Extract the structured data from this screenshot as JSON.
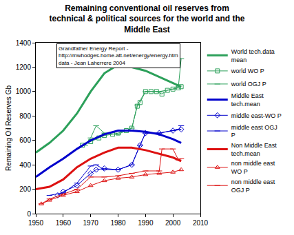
{
  "chart_data": {
    "type": "line",
    "title": [
      "Remaining conventional oil reserves from",
      "technical & political sources for the world and the",
      "Middle East"
    ],
    "annotation": [
      "Grandfather Energy Report -",
      "http://mwhodges.home.att.net/energy/energy.htm",
      "data - Jean Laherrere 2004"
    ],
    "y_label": "Remaining Oil Reserves Gb",
    "xlim": [
      1950,
      2010
    ],
    "xticks": [
      1950,
      1960,
      1970,
      1980,
      1990,
      2000,
      2010
    ],
    "ylim": [
      0,
      1400
    ],
    "yticks": [
      0,
      200,
      400,
      600,
      800,
      1000,
      1200,
      1400
    ],
    "grid": false,
    "legend": "right",
    "series": [
      {
        "name": "World tech.data mean",
        "color": "#2ca05a",
        "marker": "none",
        "line_style": "thick",
        "x": [
          1950,
          1955,
          1960,
          1965,
          1970,
          1975,
          1980,
          1985,
          1990,
          1995,
          2000,
          2003
        ],
        "values": [
          500,
          580,
          680,
          820,
          1000,
          1150,
          1220,
          1200,
          1170,
          1120,
          1070,
          1040
        ]
      },
      {
        "name": "world WO P",
        "color": "#2ca05a",
        "marker": "square",
        "line_style": "solid",
        "x": [
          1967,
          1970,
          1973,
          1975,
          1978,
          1980,
          1983,
          1985,
          1987,
          1988,
          1990,
          1992,
          1994,
          1996,
          1998,
          2000,
          2002,
          2003
        ],
        "values": [
          560,
          590,
          620,
          640,
          650,
          660,
          680,
          700,
          880,
          910,
          1000,
          1000,
          1000,
          980,
          1010,
          1020,
          1030,
          1040
        ]
      },
      {
        "name": "world OGJ P",
        "color": "#2ca05a",
        "marker": "dash",
        "line_style": "solid",
        "x": [
          1968,
          1970,
          1972,
          1975,
          1980,
          1985,
          1987,
          1990,
          1995,
          2000,
          2002,
          2003
        ],
        "values": [
          560,
          620,
          720,
          660,
          650,
          700,
          890,
          1000,
          1000,
          1020,
          1040,
          1270
        ]
      },
      {
        "name": "Middle East tech.mean",
        "color": "#0000cc",
        "marker": "none",
        "line_style": "thick",
        "x": [
          1950,
          1955,
          1960,
          1965,
          1970,
          1975,
          1980,
          1985,
          1990,
          1995,
          2000,
          2003
        ],
        "values": [
          300,
          380,
          450,
          530,
          600,
          650,
          680,
          680,
          670,
          650,
          610,
          580
        ]
      },
      {
        "name": "middle east-WO P",
        "color": "#0000cc",
        "marker": "diamond",
        "line_style": "solid",
        "x": [
          1958,
          1960,
          1965,
          1970,
          1972,
          1975,
          1980,
          1985,
          1988,
          1990,
          1995,
          2000,
          2003
        ],
        "values": [
          150,
          180,
          230,
          330,
          360,
          370,
          360,
          400,
          560,
          660,
          660,
          680,
          690
        ]
      },
      {
        "name": "middle east OGJ P",
        "color": "#0000cc",
        "marker": "dash",
        "line_style": "solid",
        "x": [
          1955,
          1960,
          1965,
          1970,
          1972,
          1975,
          1980,
          1985,
          1988,
          1990,
          1995,
          2000,
          2002,
          2003
        ],
        "values": [
          150,
          170,
          250,
          390,
          400,
          360,
          360,
          400,
          560,
          660,
          660,
          680,
          690,
          720
        ]
      },
      {
        "name": "Non Middle East tech.mean",
        "color": "#dd1111",
        "marker": "none",
        "line_style": "thick",
        "x": [
          1950,
          1955,
          1960,
          1965,
          1970,
          1975,
          1980,
          1985,
          1990,
          1995,
          2000,
          2003
        ],
        "values": [
          200,
          220,
          280,
          380,
          450,
          500,
          540,
          540,
          520,
          490,
          460,
          430
        ]
      },
      {
        "name": "non middle east WO P",
        "color": "#dd1111",
        "marker": "triangle",
        "line_style": "solid",
        "x": [
          1952,
          1955,
          1960,
          1965,
          1970,
          1975,
          1980,
          1985,
          1990,
          1995,
          2000,
          2003
        ],
        "values": [
          80,
          110,
          150,
          180,
          230,
          270,
          290,
          300,
          320,
          330,
          340,
          360
        ]
      },
      {
        "name": "non middle east OGJ P",
        "color": "#dd1111",
        "marker": "dash",
        "line_style": "solid",
        "x": [
          1952,
          1955,
          1960,
          1965,
          1970,
          1975,
          1980,
          1985,
          1990,
          1995,
          1996,
          2000,
          2002,
          2003
        ],
        "values": [
          80,
          120,
          160,
          200,
          300,
          300,
          310,
          330,
          350,
          350,
          530,
          530,
          440,
          450
        ]
      }
    ]
  }
}
